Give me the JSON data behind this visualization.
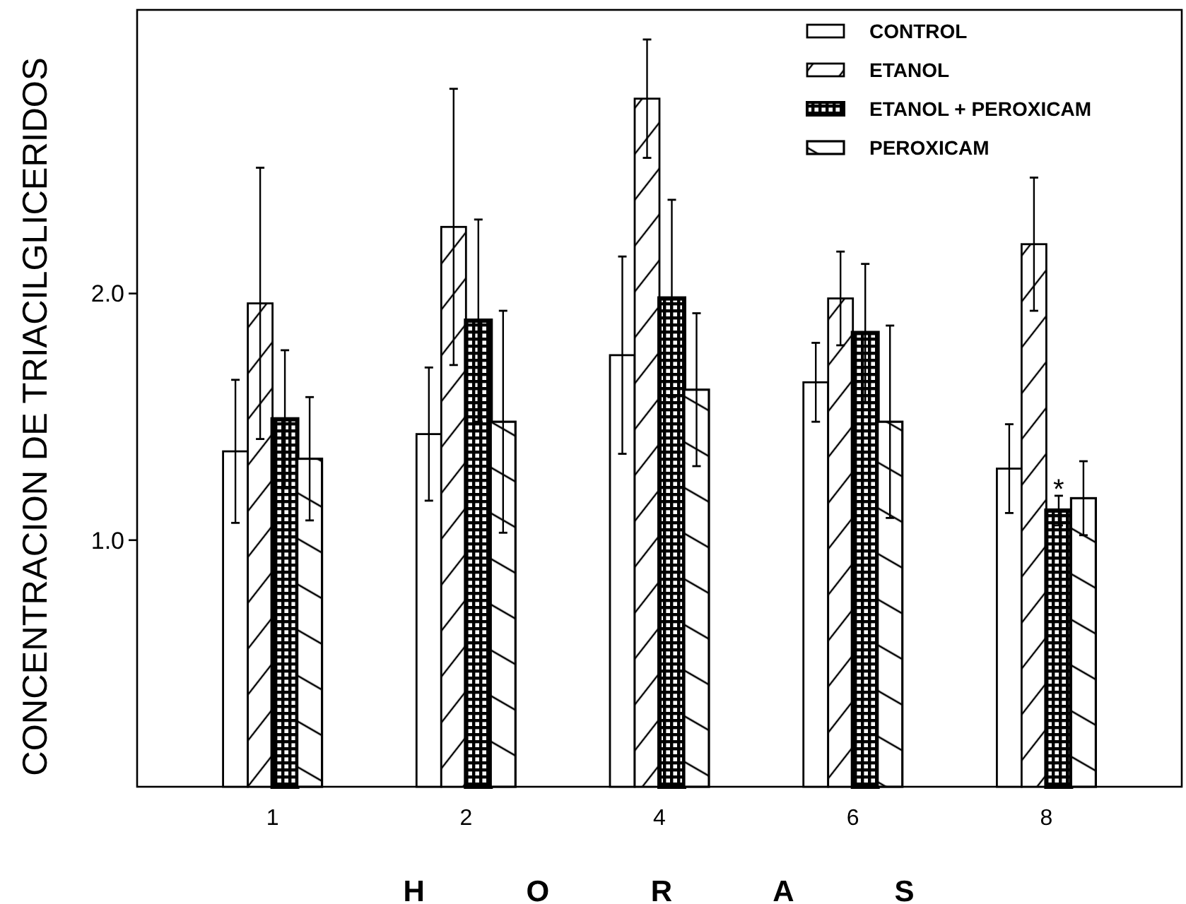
{
  "chart_data": {
    "type": "bar",
    "ylabel": "CONCENTRACION DE TRIACILGLICERIDOS",
    "xlabel": "H O R A S",
    "categories": [
      "1",
      "2",
      "4",
      "6",
      "8"
    ],
    "series": [
      {
        "name": "CONTROL",
        "color": "#000000",
        "values": [
          1.36,
          1.43,
          1.75,
          1.64,
          1.29
        ],
        "errors": [
          0.29,
          0.27,
          0.4,
          0.16,
          0.18
        ]
      },
      {
        "name": "ETANOL",
        "color": "#000000",
        "values": [
          1.96,
          2.27,
          2.79,
          1.98,
          2.2
        ],
        "errors": [
          0.55,
          0.56,
          0.24,
          0.19,
          0.27
        ]
      },
      {
        "name": "ETANOL + PEROXICAM",
        "color": "#000000",
        "values": [
          1.49,
          1.89,
          1.98,
          1.84,
          1.12
        ],
        "errors": [
          0.28,
          0.41,
          0.4,
          0.28,
          0.06
        ]
      },
      {
        "name": "PEROXICAM",
        "color": "#000000",
        "values": [
          1.33,
          1.48,
          1.61,
          1.48,
          1.17
        ],
        "errors": [
          0.25,
          0.45,
          0.31,
          0.39,
          0.15
        ]
      }
    ],
    "ylim": [
      0,
      3.15
    ],
    "yticks": [
      {
        "value": 1,
        "label": "1.0"
      },
      {
        "value": 2,
        "label": "2.0"
      }
    ],
    "legend": "top right",
    "annotations": [
      {
        "text": "*",
        "x": "8",
        "y": 1.23
      }
    ]
  }
}
